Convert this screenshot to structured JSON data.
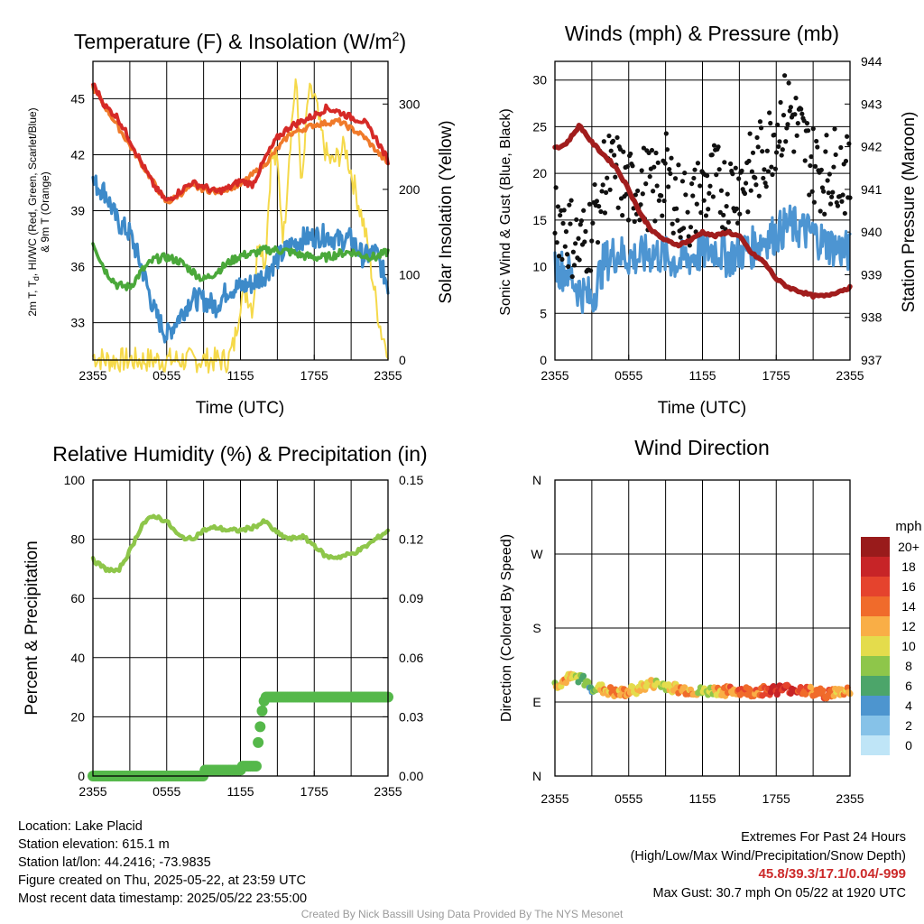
{
  "chart_data": [
    {
      "type": "line",
      "title": "Temperature (F) & Insolation (W/m2)",
      "title_main": "Temperature (F) & Insolation (W/m",
      "title_sup": "2",
      "title_close": ")",
      "xlabel": "Time (UTC)",
      "ylabel_line1": "2m T, T",
      "ylabel_sub": "d",
      "ylabel_line1_rest": ", HI/WC (Red, Green, Scarlet/Blue)",
      "ylabel_line2": "& 9m T (Orange)",
      "ylabel_right": "Solar Insolation (Yellow)",
      "x_ticks": [
        "2355",
        "0555",
        "1155",
        "1755",
        "2355"
      ],
      "ylim": [
        31,
        47
      ],
      "y_ticks": [
        "33",
        "36",
        "39",
        "42",
        "45"
      ],
      "y_right_lim": [
        0,
        350
      ],
      "y_right_ticks": [
        "0",
        "100",
        "200",
        "300"
      ],
      "series": [
        {
          "name": "2m T",
          "color": "#d62a27",
          "x_hours": [
            0,
            1,
            2,
            3,
            4,
            5,
            6,
            7,
            8,
            9,
            10,
            11,
            12,
            13,
            14,
            15,
            16,
            17,
            18,
            19,
            20,
            21,
            22,
            23,
            24
          ],
          "values": [
            45.8,
            44.6,
            44.0,
            42.8,
            41.5,
            40.3,
            39.5,
            40.0,
            40.5,
            40.3,
            40.0,
            40.2,
            40.6,
            40.4,
            41.8,
            42.9,
            43.5,
            43.8,
            44.1,
            44.5,
            44.3,
            44.0,
            43.8,
            42.9,
            41.7
          ]
        },
        {
          "name": "9m T",
          "color": "#f07a2a",
          "x_hours": [
            0,
            6,
            8,
            10,
            12,
            14,
            16,
            18,
            20,
            22,
            24
          ],
          "values": [
            45.6,
            39.4,
            40.3,
            40.0,
            40.4,
            41.5,
            43.1,
            43.6,
            43.8,
            43.0,
            41.5
          ]
        },
        {
          "name": "Td",
          "color": "#4aa83a",
          "x_hours": [
            0,
            1,
            2,
            3,
            4,
            5,
            6,
            7,
            8,
            9,
            10,
            11,
            12,
            13,
            14,
            15,
            16,
            17,
            18,
            19,
            20,
            21,
            22,
            23,
            24
          ],
          "values": [
            37.3,
            35.8,
            35.0,
            34.9,
            35.8,
            36.4,
            36.5,
            36.3,
            35.8,
            35.3,
            35.7,
            36.2,
            36.6,
            36.7,
            36.9,
            36.9,
            36.8,
            36.6,
            36.5,
            36.5,
            36.7,
            36.8,
            36.6,
            36.5,
            36.8
          ]
        },
        {
          "name": "HI/WC",
          "color": "#3d8ac9",
          "x_hours": [
            0,
            1,
            2,
            3,
            4,
            5,
            6,
            7,
            8,
            9,
            10,
            11,
            12,
            13,
            14,
            15,
            16,
            17,
            18,
            19,
            20,
            21,
            22,
            23,
            24
          ],
          "values": [
            40.5,
            40.0,
            38.4,
            37.8,
            35.9,
            33.6,
            32.3,
            33.3,
            34.3,
            34.2,
            33.9,
            34.8,
            34.9,
            35.1,
            35.6,
            36.4,
            37.1,
            37.5,
            37.6,
            37.7,
            37.4,
            37.5,
            36.5,
            36.8,
            35.0
          ]
        },
        {
          "name": "Solar Insolation",
          "color": "#f5d94a",
          "axis": "right",
          "x_hours": [
            0,
            1,
            2,
            3,
            4,
            5,
            6,
            7,
            8,
            9,
            10,
            11,
            11.5,
            12,
            12.5,
            13,
            13.5,
            14,
            14.5,
            15,
            15.5,
            16,
            16.5,
            17,
            17.5,
            18,
            18.5,
            19,
            19.5,
            20,
            20.5,
            21,
            21.5,
            22,
            22.5,
            23,
            23.5,
            24
          ],
          "values": [
            5,
            0,
            0,
            0,
            0,
            0,
            0,
            0,
            0,
            0,
            0,
            0,
            20,
            70,
            80,
            60,
            150,
            110,
            240,
            230,
            140,
            250,
            330,
            200,
            310,
            310,
            270,
            240,
            230,
            240,
            250,
            220,
            190,
            160,
            120,
            70,
            30,
            15
          ]
        }
      ]
    },
    {
      "type": "scatter",
      "title": "Winds (mph) & Pressure (mb)",
      "xlabel": "Time (UTC)",
      "ylabel": "Sonic Wind & Gust (Blue, Black)",
      "ylabel_right": "Station Pressure (Maroon)",
      "x_ticks": [
        "2355",
        "0555",
        "1155",
        "1755",
        "2355"
      ],
      "ylim": [
        0,
        32
      ],
      "y_ticks": [
        "0",
        "5",
        "10",
        "15",
        "20",
        "25",
        "30"
      ],
      "y_right_lim": [
        937,
        944
      ],
      "y_right_ticks": [
        "937",
        "938",
        "939",
        "940",
        "941",
        "942",
        "943",
        "944"
      ],
      "series": [
        {
          "name": "Sonic Wind",
          "color": "#4d95d2",
          "x_hours": [
            0,
            1,
            2,
            3,
            4,
            5,
            6,
            7,
            8,
            9,
            10,
            11,
            12,
            13,
            14,
            15,
            16,
            17,
            18,
            19,
            20,
            21,
            22,
            23,
            24
          ],
          "values": [
            10.0,
            9.5,
            7.5,
            6.5,
            10.5,
            11.5,
            11.0,
            11.0,
            11.5,
            11.0,
            10.5,
            11.0,
            11.5,
            12.0,
            11.0,
            11.5,
            12.0,
            13.0,
            13.5,
            14.5,
            14.0,
            13.5,
            12.5,
            12.0,
            11.5
          ]
        },
        {
          "name": "Gust",
          "color": "#111111",
          "x_hours": [
            0,
            1,
            2,
            3,
            4,
            5,
            6,
            7,
            8,
            9,
            10,
            11,
            12,
            13,
            14,
            15,
            16,
            17,
            18,
            19,
            20,
            21,
            22,
            23,
            24
          ],
          "values": [
            16,
            14,
            12,
            14,
            20,
            20,
            18,
            19,
            18,
            20,
            17,
            16,
            18,
            19,
            18,
            19,
            20,
            22,
            25,
            27,
            24,
            21,
            20,
            21,
            19
          ]
        },
        {
          "name": "Station Pressure",
          "color": "#a11d1d",
          "axis": "right",
          "x_hours": [
            0,
            0.5,
            1,
            2,
            3,
            4,
            5,
            6,
            7,
            8,
            9,
            10,
            11,
            12,
            13,
            14,
            15,
            16,
            17,
            18,
            19,
            20,
            21,
            22,
            23,
            24
          ],
          "values": [
            942.0,
            942.0,
            942.1,
            942.5,
            942.1,
            941.8,
            941.5,
            941.0,
            940.4,
            940.0,
            939.8,
            939.7,
            939.8,
            940.0,
            939.9,
            940.0,
            939.9,
            939.5,
            939.3,
            938.9,
            938.7,
            938.6,
            938.5,
            938.5,
            938.6,
            938.7
          ]
        }
      ]
    },
    {
      "type": "line",
      "title": "Relative Humidity (%) & Precipitation (in)",
      "ylabel": "Percent & Precipitation",
      "x_ticks": [
        "2355",
        "0555",
        "1155",
        "1755",
        "2355"
      ],
      "ylim": [
        0,
        100
      ],
      "y_ticks": [
        "0",
        "20",
        "40",
        "60",
        "80",
        "100"
      ],
      "y_right_lim": [
        0,
        0.15
      ],
      "y_right_ticks": [
        "0.00",
        "0.03",
        "0.06",
        "0.09",
        "0.12",
        "0.15"
      ],
      "series": [
        {
          "name": "Relative Humidity",
          "color": "#8ec64a",
          "x_hours": [
            0,
            1,
            2,
            3,
            4,
            5,
            6,
            7,
            8,
            9,
            10,
            11,
            12,
            13,
            14,
            15,
            16,
            17,
            18,
            19,
            20,
            21,
            22,
            23,
            24
          ],
          "values": [
            73,
            70,
            69,
            76,
            85,
            88,
            86,
            81,
            80,
            83,
            84,
            83,
            83,
            84,
            86,
            82,
            80,
            81,
            78,
            74,
            74,
            75,
            77,
            80,
            83
          ]
        },
        {
          "name": "Precipitation",
          "color": "#55b84a",
          "axis": "right",
          "x_hours": [
            0,
            9.0,
            9.1,
            12.0,
            12.1,
            13.3,
            13.4,
            13.6,
            13.8,
            14.0,
            24
          ],
          "values": [
            0.0,
            0.0,
            0.003,
            0.003,
            0.005,
            0.005,
            0.015,
            0.025,
            0.035,
            0.04,
            0.04
          ]
        }
      ]
    },
    {
      "type": "scatter",
      "title": "Wind Direction",
      "ylabel": "Direction (Colored By Speed)",
      "x_ticks": [
        "2355",
        "0555",
        "1155",
        "1755",
        "2355"
      ],
      "y_ticks": [
        "N",
        "E",
        "S",
        "W",
        "N"
      ],
      "ylim": [
        0,
        360
      ],
      "colorbar_title": "mph",
      "colorbar_labels": [
        "0",
        "2",
        "4",
        "6",
        "8",
        "10",
        "12",
        "14",
        "16",
        "18",
        "20+"
      ],
      "colorbar_colors": [
        "#bfe5f7",
        "#86c2e8",
        "#4d95cf",
        "#4ca56a",
        "#8ec64a",
        "#e4dc4c",
        "#f9ae46",
        "#f06b2b",
        "#e5432d",
        "#c72427",
        "#991b1b"
      ],
      "series": [
        {
          "name": "Wind Direction",
          "x_hours": [
            0,
            1,
            2,
            3,
            4,
            5,
            6,
            7,
            8,
            9,
            10,
            11,
            12,
            13,
            14,
            15,
            16,
            17,
            18,
            19,
            20,
            21,
            22,
            23,
            24
          ],
          "values": [
            110,
            118,
            120,
            108,
            105,
            100,
            102,
            108,
            112,
            110,
            106,
            104,
            102,
            104,
            103,
            104,
            102,
            104,
            105,
            106,
            105,
            102,
            100,
            102,
            104
          ],
          "speeds": [
            10,
            12,
            8,
            6,
            12,
            13,
            12,
            11,
            10,
            9,
            12,
            12,
            8,
            11,
            13,
            14,
            14,
            15,
            17,
            17,
            16,
            14,
            15,
            12,
            12
          ]
        }
      ]
    }
  ],
  "footer": {
    "location": "Location: Lake Placid",
    "elevation": "Station elevation: 615.1 m",
    "latlon": "Station lat/lon: 44.2416; -73.9835",
    "created": "Figure created on Thu, 2025-05-22, at 23:59 UTC",
    "recent": "Most recent data timestamp: 2025/05/22 23:55:00",
    "extremes_title": "Extremes For Past 24 Hours",
    "extremes_desc": "(High/Low/Max Wind/Precipitation/Snow Depth)",
    "extremes_values": "45.8/39.3/17.1/0.04/-999",
    "max_gust": "Max Gust: 30.7 mph On 05/22 at 1920 UTC",
    "credit": "Created By Nick Bassill Using Data Provided By The NYS Mesonet"
  }
}
